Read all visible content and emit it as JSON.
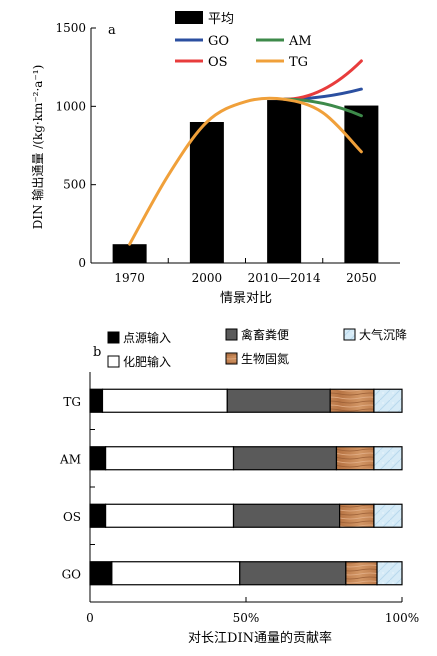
{
  "chart_data": [
    {
      "type": "bar+line",
      "panel_label": "a",
      "ylabel": "DIN 输出通量 /(kg·km⁻²·a⁻¹)",
      "xlabel": "情景对比",
      "categories": [
        "1970",
        "2000",
        "2010—2014",
        "2050"
      ],
      "ylim": [
        0,
        1500
      ],
      "yticks": [
        0,
        500,
        1000,
        1500
      ],
      "bar_series": {
        "name": "平均",
        "color": "#000000",
        "values": [
          120,
          900,
          1040,
          1005
        ]
      },
      "line_series": [
        {
          "name": "GO",
          "color": "#2b4fa0",
          "points": [
            [
              2,
              1045
            ],
            [
              3,
              1110
            ]
          ]
        },
        {
          "name": "OS",
          "color": "#e83c3c",
          "points": [
            [
              2,
              1045
            ],
            [
              3,
              1290
            ]
          ]
        },
        {
          "name": "AM",
          "color": "#3d8a4a",
          "points": [
            [
              2,
              1045
            ],
            [
              3,
              940
            ]
          ]
        },
        {
          "name": "TG",
          "color": "#f0a03a",
          "points": [
            [
              0,
              120
            ],
            [
              0.5,
              560
            ],
            [
              1,
              900
            ],
            [
              1.5,
              1030
            ],
            [
              2,
              1045
            ],
            [
              2.5,
              960
            ],
            [
              3,
              710
            ]
          ]
        }
      ],
      "legend": [
        {
          "name": "平均",
          "kind": "bar",
          "color": "#000000"
        },
        {
          "name": "GO",
          "kind": "line",
          "color": "#2b4fa0"
        },
        {
          "name": "AM",
          "kind": "line",
          "color": "#3d8a4a"
        },
        {
          "name": "OS",
          "kind": "line",
          "color": "#e83c3c"
        },
        {
          "name": "TG",
          "kind": "line",
          "color": "#f0a03a"
        }
      ]
    },
    {
      "type": "stacked-bar-horizontal",
      "panel_label": "b",
      "xlabel": "对长江DIN通量的贡献率",
      "xlim": [
        0,
        100
      ],
      "xticks": [
        "0",
        "50%",
        "100%"
      ],
      "categories": [
        "TG",
        "AM",
        "OS",
        "GO"
      ],
      "segments": [
        {
          "name": "点源输入",
          "color": "#000000"
        },
        {
          "name": "化肥输入",
          "color": "#ffffff"
        },
        {
          "name": "禽畜粪便",
          "color": "#5a5a5a"
        },
        {
          "name": "生物固氮",
          "color": "#c98a5a"
        },
        {
          "name": "大气沉降",
          "color": "#cfe6f5"
        }
      ],
      "values": [
        [
          4,
          40,
          33,
          14,
          9
        ],
        [
          5,
          41,
          33,
          12,
          9
        ],
        [
          5,
          41,
          34,
          11,
          9
        ],
        [
          7,
          41,
          34,
          10,
          8
        ]
      ]
    }
  ]
}
